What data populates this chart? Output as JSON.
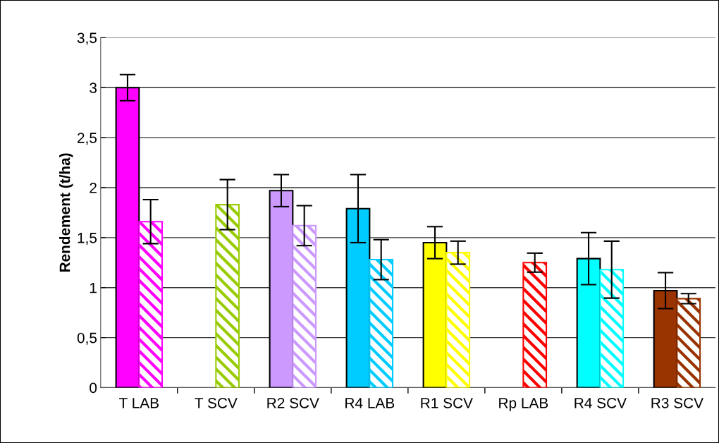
{
  "chart_data": {
    "type": "bar",
    "ylabel": "Rendement (t/ha)",
    "categories": [
      "T LAB",
      "T SCV",
      "R2 SCV",
      "R4 LAB",
      "R1 SCV",
      "Rp LAB",
      "R4 SCV",
      "R3 SCV"
    ],
    "series": [
      {
        "colors": [
          "#ff00ff",
          "#99cc00",
          "#cc99ff",
          "#00ccff",
          "#ffff00",
          "#ff0000",
          "#00ffff",
          "#993300"
        ],
        "values": [
          3.0,
          null,
          1.97,
          1.79,
          1.45,
          null,
          1.29,
          0.97
        ],
        "errors": [
          0.13,
          null,
          0.16,
          0.34,
          0.16,
          null,
          0.26,
          0.18
        ]
      },
      {
        "colors": [
          "#ff00ff",
          "#99cc00",
          "#cc99ff",
          "#00ccff",
          "#ffff00",
          "#ff0000",
          "#00ffff",
          "#993300"
        ],
        "values": [
          1.66,
          1.83,
          1.62,
          1.28,
          1.35,
          1.25,
          1.18,
          0.89
        ],
        "errors": [
          0.22,
          0.25,
          0.2,
          0.2,
          0.115,
          0.095,
          0.285,
          0.05
        ]
      }
    ],
    "ylim": [
      0,
      3.5
    ],
    "yticks": [
      0,
      {
        "value": 0.5,
        "label": "0,5"
      },
      1,
      {
        "value": 1.5,
        "label": "1,5"
      },
      2,
      {
        "value": 2.5,
        "label": "2,5"
      },
      3,
      {
        "value": 3.5,
        "label": "3,5"
      }
    ],
    "grid": "y",
    "legend": false
  }
}
